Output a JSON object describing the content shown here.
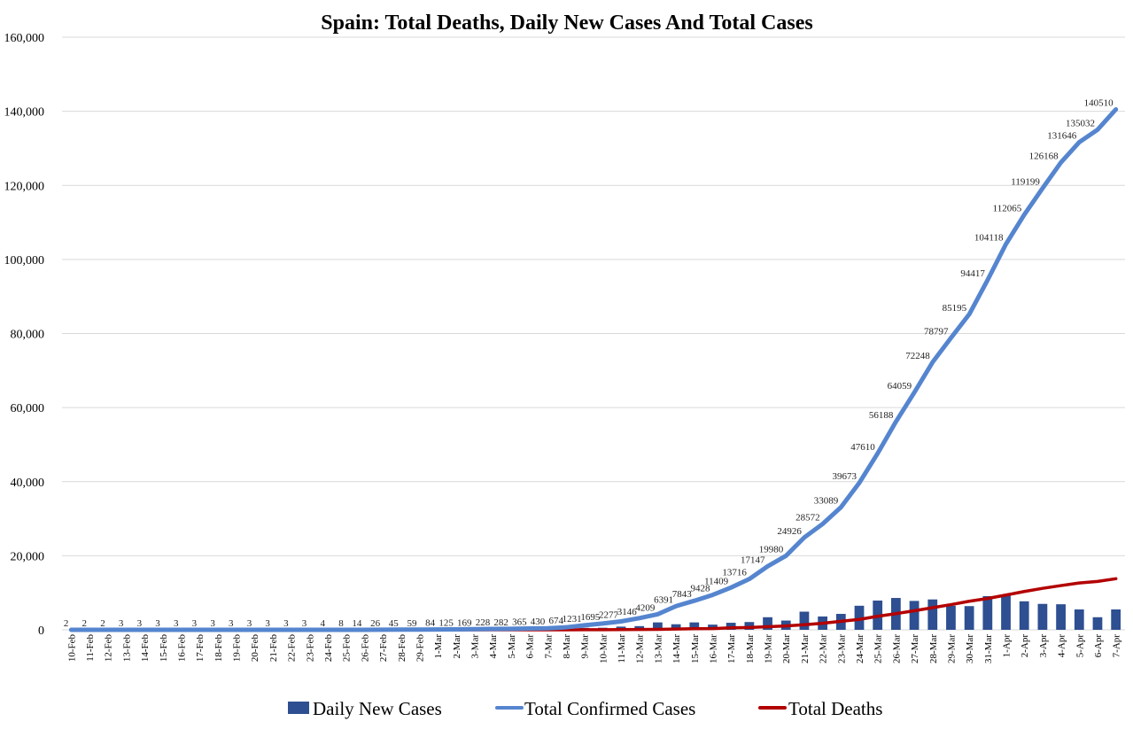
{
  "chart_data": {
    "type": "bar+line",
    "title": "Spain: Total Deaths, Daily New Cases And Total Cases",
    "ylim": [
      0,
      160000
    ],
    "yticks": [
      {
        "value": 0,
        "label": "0"
      },
      {
        "value": 20000,
        "label": "20,000"
      },
      {
        "value": 40000,
        "label": "40,000"
      },
      {
        "value": 60000,
        "label": "60,000"
      },
      {
        "value": 80000,
        "label": "80,000"
      },
      {
        "value": 100000,
        "label": "100,000"
      },
      {
        "value": 120000,
        "label": "120,000"
      },
      {
        "value": 140000,
        "label": "140,000"
      },
      {
        "value": 160000,
        "label": "160,000"
      }
    ],
    "grid": true,
    "legend_position": "bottom",
    "categories": [
      "10-Feb",
      "11-Feb",
      "12-Feb",
      "13-Feb",
      "14-Feb",
      "15-Feb",
      "16-Feb",
      "17-Feb",
      "18-Feb",
      "19-Feb",
      "20-Feb",
      "21-Feb",
      "22-Feb",
      "23-Feb",
      "24-Feb",
      "25-Feb",
      "26-Feb",
      "27-Feb",
      "28-Feb",
      "29-Feb",
      "1-Mar",
      "2-Mar",
      "3-Mar",
      "4-Mar",
      "5-Mar",
      "6-Mar",
      "7-Mar",
      "8-Mar",
      "9-Mar",
      "10-Mar",
      "11-Mar",
      "12-Mar",
      "13-Mar",
      "14-Mar",
      "15-Mar",
      "16-Mar",
      "17-Mar",
      "18-Mar",
      "19-Mar",
      "20-Mar",
      "21-Mar",
      "22-Mar",
      "23-Mar",
      "24-Mar",
      "25-Mar",
      "26-Mar",
      "27-Mar",
      "28-Mar",
      "29-Mar",
      "30-Mar",
      "31-Mar",
      "1-Apr",
      "2-Apr",
      "3-Apr",
      "4-Apr",
      "5-Apr",
      "6-Apr",
      "7-Apr"
    ],
    "series": [
      {
        "name": "Daily New Cases",
        "kind": "bar",
        "color": "#2e4f91",
        "values": [
          0,
          0,
          0,
          1,
          0,
          0,
          0,
          0,
          0,
          0,
          0,
          0,
          0,
          0,
          1,
          4,
          6,
          19,
          14,
          26,
          39,
          36,
          49,
          54,
          91,
          126,
          200,
          346,
          530,
          557,
          866,
          1000,
          2000,
          1500,
          2000,
          1400,
          1900,
          2100,
          3400,
          2500,
          4900,
          3600,
          4300,
          6500,
          7900,
          8600,
          7800,
          8200,
          6500,
          6400,
          9100,
          9300,
          7700,
          7000,
          6900,
          5500,
          3400,
          5500
        ]
      },
      {
        "name": "Total Confirmed Cases",
        "kind": "line",
        "color": "#5585cf",
        "values": [
          2,
          2,
          2,
          3,
          3,
          3,
          3,
          3,
          3,
          3,
          3,
          3,
          3,
          3,
          4,
          8,
          14,
          26,
          45,
          59,
          84,
          125,
          169,
          228,
          282,
          365,
          430,
          674,
          1231,
          1695,
          2277,
          3146,
          4209,
          6391,
          7843,
          9428,
          11409,
          13716,
          17147,
          19980,
          24926,
          28572,
          33089,
          39673,
          47610,
          56188,
          64059,
          72248,
          78797,
          85195,
          94417,
          104118,
          112065,
          119199,
          126168,
          131646,
          135032,
          140510
        ],
        "labels": [
          "2",
          "2",
          "2",
          "3",
          "3",
          "3",
          "3",
          "3",
          "3",
          "3",
          "3",
          "3",
          "3",
          "3",
          "4",
          "8",
          "14",
          "26",
          "45",
          "59",
          "84",
          "125",
          "169",
          "228",
          "282",
          "365",
          "430",
          "674",
          "1231",
          "1695",
          "2277",
          "3146",
          "4209",
          "6391",
          "7843",
          "9428",
          "11409",
          "13716",
          "17147",
          "19980",
          "24926",
          "28572",
          "33089",
          "39673",
          "47610",
          "56188",
          "64059",
          "72248",
          "78797",
          "85195",
          "94417",
          "104118",
          "112065",
          "119199",
          "126168",
          "131646",
          "135032",
          "140510"
        ]
      },
      {
        "name": "Total Deaths",
        "kind": "line",
        "color": "#b30000",
        "values": [
          0,
          0,
          0,
          0,
          0,
          0,
          0,
          0,
          0,
          0,
          0,
          0,
          0,
          0,
          0,
          0,
          0,
          0,
          0,
          0,
          0,
          0,
          0,
          1,
          3,
          5,
          8,
          10,
          17,
          35,
          54,
          84,
          133,
          195,
          289,
          342,
          533,
          623,
          830,
          1043,
          1375,
          1772,
          2311,
          2808,
          3647,
          4365,
          5138,
          5982,
          6803,
          7716,
          8464,
          9387,
          10348,
          11198,
          11947,
          12641,
          13055,
          13798
        ]
      }
    ]
  }
}
